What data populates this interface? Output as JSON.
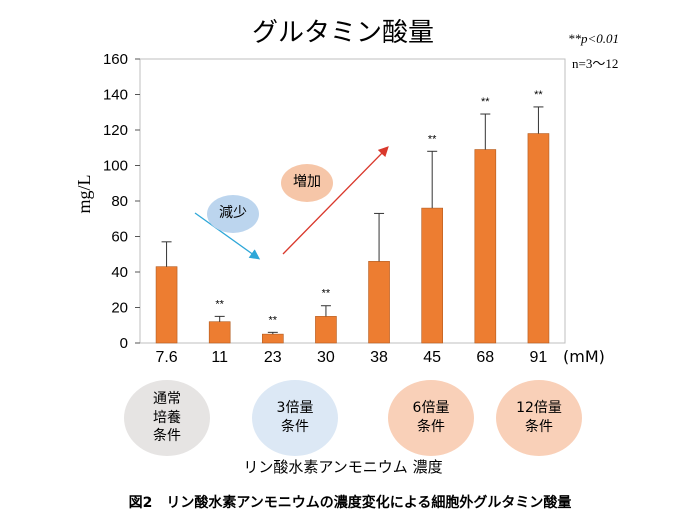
{
  "chart_data": {
    "type": "bar",
    "title": "グルタミン酸量",
    "significance_note": "**p<0.01",
    "sample_note": "n=3〜12",
    "ylabel": "mg/L",
    "xlabel": "リン酸水素アンモニウム 濃度",
    "x_unit": "(mM)",
    "ylim": [
      0,
      160
    ],
    "yticks": [
      0,
      20,
      40,
      60,
      80,
      100,
      120,
      140,
      160
    ],
    "categories": [
      "7.6",
      "11",
      "23",
      "30",
      "38",
      "45",
      "68",
      "91"
    ],
    "values": [
      43,
      12,
      5,
      15,
      46,
      76,
      109,
      118
    ],
    "errors": [
      14,
      3,
      1,
      6,
      27,
      32,
      20,
      15
    ],
    "significance": [
      "",
      "**",
      "**",
      "**",
      "",
      "**",
      "**",
      "**"
    ],
    "bar_color": "#ed7d31",
    "annotations": {
      "decrease": "減少",
      "increase": "増加",
      "decrease_color": "#2ea7d8",
      "increase_color": "#d9382c"
    }
  },
  "conditions": [
    {
      "line1": "通常",
      "line2": "培養",
      "line3": "条件",
      "color": "#e6e4e3"
    },
    {
      "line1": "3倍量",
      "line2": "条件",
      "line3": "",
      "color": "#dce8f5"
    },
    {
      "line1": "6倍量",
      "line2": "条件",
      "line3": "",
      "color": "#f9d0b8"
    },
    {
      "line1": "12倍量",
      "line2": "条件",
      "line3": "",
      "color": "#f9d0b8"
    }
  ],
  "caption": "図2　リン酸水素アンモニウムの濃度変化による細胞外グルタミン酸量"
}
